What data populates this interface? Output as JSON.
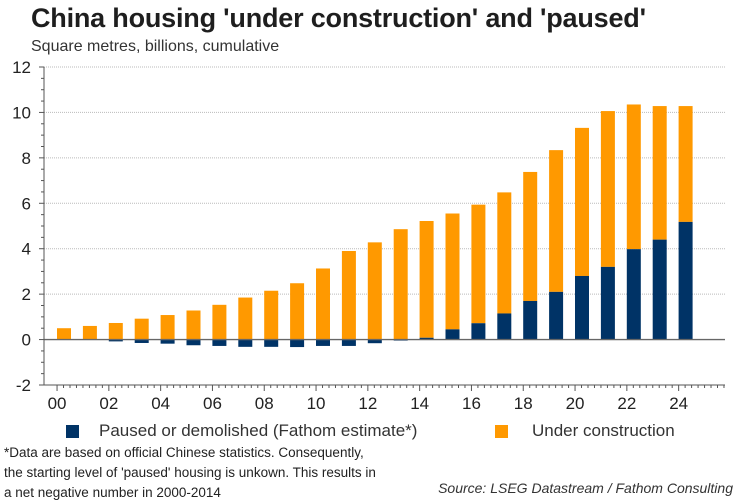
{
  "chart_data": {
    "type": "bar",
    "stacked": true,
    "title": "China housing 'under construction' and 'paused'",
    "subtitle": "Square metres, billions, cumulative",
    "xlabel": "",
    "ylabel": "",
    "ylim": [
      -2,
      12
    ],
    "yticks": [
      -2,
      0,
      2,
      4,
      6,
      8,
      10,
      12
    ],
    "ytick_labels": [
      "-2",
      "0",
      "2",
      "4",
      "6",
      "8",
      "10",
      "12"
    ],
    "xtick_labels": [
      "00",
      "02",
      "04",
      "06",
      "08",
      "10",
      "12",
      "14",
      "16",
      "18",
      "20",
      "22",
      "24"
    ],
    "grid": true,
    "legend_position": "bottom",
    "categories": [
      "2000",
      "2001",
      "2002",
      "2003",
      "2004",
      "2005",
      "2006",
      "2007",
      "2008",
      "2009",
      "2010",
      "2011",
      "2012",
      "2013",
      "2014",
      "2015",
      "2016",
      "2017",
      "2018",
      "2019",
      "2020",
      "2021",
      "2022",
      "2023",
      "2024"
    ],
    "series": [
      {
        "name": "Paused or demolished (Fathom estimate*)",
        "color": "#003366",
        "values": [
          0,
          0,
          -0.08,
          -0.15,
          -0.18,
          -0.25,
          -0.28,
          -0.32,
          -0.32,
          -0.33,
          -0.28,
          -0.28,
          -0.16,
          -0.04,
          0.08,
          0.45,
          0.72,
          1.15,
          1.7,
          2.1,
          2.8,
          3.2,
          3.98,
          4.4,
          5.18
        ]
      },
      {
        "name": "Under construction",
        "color": "#FF9900",
        "values": [
          0.5,
          0.6,
          0.73,
          0.92,
          1.08,
          1.28,
          1.53,
          1.85,
          2.15,
          2.48,
          3.13,
          3.9,
          4.28,
          4.86,
          5.14,
          5.1,
          5.22,
          5.33,
          5.68,
          6.24,
          6.52,
          6.86,
          6.37,
          5.88,
          5.1
        ]
      }
    ]
  },
  "legend": {
    "items": [
      {
        "label": "Paused or demolished (Fathom estimate*)",
        "color": "#003366"
      },
      {
        "label": "Under construction",
        "color": "#FF9900"
      }
    ]
  },
  "footnote": {
    "lines": [
      "*Data are based on official Chinese statistics. Consequently,",
      "the starting level of 'paused' housing is unkown. This results in",
      "a net negative number in 2000-2014"
    ]
  },
  "source": "Source: LSEG Datastream / Fathom Consulting"
}
